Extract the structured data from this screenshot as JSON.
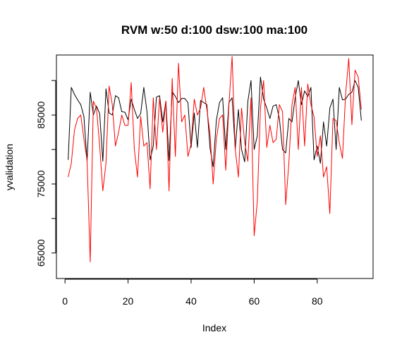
{
  "chart_data": {
    "type": "line",
    "title": "RVM  w:50 d:100 dsw:100 ma:100",
    "xlabel": "Index",
    "ylabel": "yvalidation",
    "xlim": [
      1,
      94
    ],
    "ylim": [
      62500,
      92500
    ],
    "xticks": [
      20,
      40,
      60,
      80
    ],
    "xtick_labels": [
      "20",
      "40",
      "60",
      "80"
    ],
    "x_extra_tick": {
      "value": 0,
      "label": "0"
    },
    "yticks": [
      65000,
      70000,
      75000,
      80000,
      85000,
      90000
    ],
    "ytick_labels": [
      "65000",
      "",
      "75000",
      "",
      "85000",
      ""
    ],
    "grid": false,
    "legend": "none",
    "series": [
      {
        "color": "#000000",
        "values": [
          78500,
          89000,
          88000,
          87200,
          86500,
          84800,
          78300,
          88300,
          85000,
          86300,
          85200,
          78300,
          88800,
          85300,
          85000,
          87800,
          87500,
          85500,
          85400,
          84300,
          87300,
          85800,
          84500,
          85200,
          89000,
          85500,
          78500,
          80500,
          87600,
          87800,
          84000,
          87000,
          78400,
          88400,
          87700,
          86800,
          87400,
          87400,
          86800,
          80300,
          85300,
          80300,
          87100,
          86800,
          86500,
          80200,
          77500,
          84200,
          86800,
          87500,
          80000,
          86800,
          87500,
          80000,
          85800,
          80000,
          78200,
          87000,
          90000,
          80000,
          82000,
          90500,
          87300,
          86000,
          84500,
          86300,
          86500,
          84500,
          80000,
          79500,
          84500,
          84000,
          87500,
          90000,
          86500,
          88500,
          87700,
          89000,
          78500,
          80500,
          78000,
          84000,
          80500,
          86000,
          87300,
          80000,
          89000,
          87200,
          87300,
          88000,
          88300,
          90000,
          89000,
          84200
        ]
      },
      {
        "color": "#ff0000",
        "values": [
          76000,
          78000,
          82800,
          84500,
          85000,
          81500,
          78500,
          63700,
          87000,
          86000,
          80500,
          74000,
          78000,
          89200,
          86500,
          80500,
          82500,
          85000,
          83500,
          83500,
          89700,
          80000,
          76000,
          84800,
          80500,
          81000,
          74300,
          87500,
          80000,
          87500,
          82500,
          87000,
          74000,
          90300,
          79000,
          92500,
          84000,
          85000,
          79000,
          80800,
          87300,
          85000,
          86000,
          89000,
          85800,
          82300,
          75000,
          81500,
          84500,
          85000,
          77000,
          86500,
          93500,
          80000,
          76000,
          86000,
          81000,
          78300,
          87500,
          67500,
          72500,
          86000,
          90000,
          80300,
          83500,
          81000,
          81500,
          86500,
          85500,
          72000,
          78000,
          86500,
          89000,
          80000,
          89000,
          80500,
          89500,
          86500,
          84700,
          79000,
          82000,
          76000,
          77500,
          70700,
          84500,
          84200,
          81000,
          78700,
          88000,
          93200,
          83600,
          91500,
          90500,
          85800
        ]
      }
    ]
  }
}
